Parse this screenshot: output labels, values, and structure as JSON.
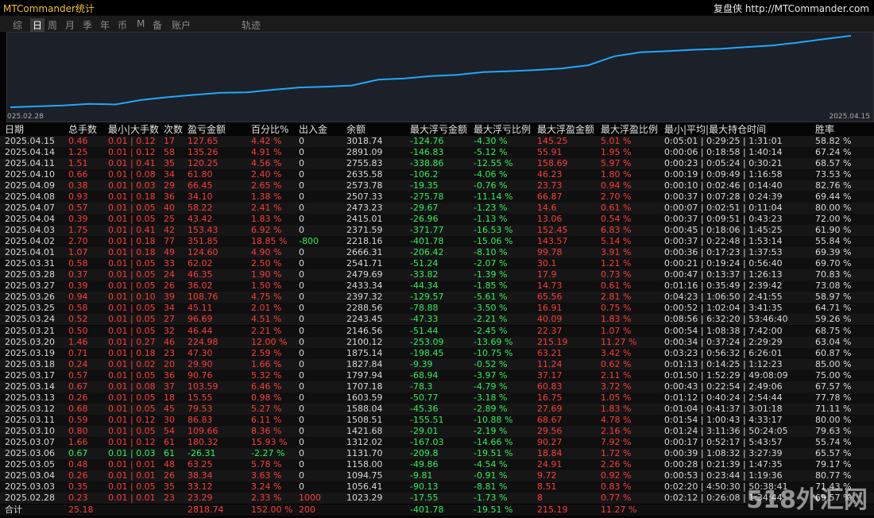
{
  "header": {
    "title": "MTCommander统计",
    "brand": "复盘侠",
    "url": "http://MTCommander.com"
  },
  "tabs": [
    "综",
    "日",
    "周",
    "月",
    "季",
    "年",
    "币",
    "M",
    "备",
    "账户",
    "轨迹"
  ],
  "active_tab": 1,
  "chart": {
    "type": "line",
    "x_start_label": "025.02.28",
    "x_end_label": "2025.04.15",
    "color": "#1fa8ff"
  },
  "table": {
    "columns": [
      "日期",
      "总手数",
      "最小|大手数",
      "次数",
      "盈亏金额",
      "百分比%",
      "出入金",
      "余额",
      "最大浮亏金额",
      "最大浮亏比例",
      "最大浮盈金额",
      "最大浮盈比例",
      "最小|平均|最大持仓时间",
      "胜率"
    ],
    "rows": [
      [
        "2025.04.15",
        "0.46",
        "0.01 | 0.12",
        "17",
        "127.65",
        "4.42 %",
        "0",
        "3018.74",
        "-124.76",
        "-4.30 %",
        "145.25",
        "5.01 %",
        "0:05:01 | 0:29:25 | 1:31:01",
        "58.82 %"
      ],
      [
        "2025.04.14",
        "1.25",
        "0.01 | 0.12",
        "58",
        "135.26",
        "4.91 %",
        "0",
        "2891.09",
        "-146.83",
        "-5.12 %",
        "55.91",
        "1.95 %",
        "0:00:06 | 0:18:58 | 1:40:14",
        "67.24 %"
      ],
      [
        "2025.04.11",
        "1.51",
        "0.01 | 0.41",
        "35",
        "120.25",
        "4.56 %",
        "0",
        "2755.83",
        "-338.86",
        "-12.55 %",
        "158.69",
        "5.97 %",
        "0:00:23 | 0:05:24 | 0:30:21",
        "68.57 %"
      ],
      [
        "2025.04.10",
        "0.66",
        "0.01 | 0.08",
        "34",
        "61.80",
        "2.40 %",
        "0",
        "2635.58",
        "-106.2",
        "-4.06 %",
        "46.23",
        "1.80 %",
        "0:00:19 | 0:09:49 | 1:16:58",
        "73.53 %"
      ],
      [
        "2025.04.09",
        "0.38",
        "0.01 | 0.03",
        "29",
        "66.45",
        "2.65 %",
        "0",
        "2573.78",
        "-19.35",
        "-0.76 %",
        "23.73",
        "0.94 %",
        "0:00:10 | 0:02:46 | 0:14:40",
        "82.76 %"
      ],
      [
        "2025.04.08",
        "0.93",
        "0.01 | 0.18",
        "36",
        "34.10",
        "1.38 %",
        "0",
        "2507.33",
        "-275.78",
        "-11.14 %",
        "66.87",
        "2.70 %",
        "0:00:37 | 0:07:28 | 0:24:39",
        "69.44 %"
      ],
      [
        "2025.04.07",
        "0.57",
        "0.01 | 0.05",
        "40",
        "58.22",
        "2.41 %",
        "0",
        "2473.23",
        "-29.67",
        "-1.23 %",
        "14.6",
        "0.61 %",
        "0:00:07 | 0:02:51 | 0:11:04",
        "80.00 %"
      ],
      [
        "2025.04.04",
        "0.39",
        "0.01 | 0.05",
        "25",
        "43.42",
        "1.83 %",
        "0",
        "2415.01",
        "-26.96",
        "-1.13 %",
        "13.06",
        "0.54 %",
        "0:00:37 | 0:09:51 | 0:43:23",
        "72.00 %"
      ],
      [
        "2025.04.03",
        "1.75",
        "0.01 | 0.41",
        "42",
        "153.43",
        "6.92 %",
        "0",
        "2371.59",
        "-371.77",
        "-16.53 %",
        "152.45",
        "6.83 %",
        "0:00:45 | 0:18:06 | 1:45:25",
        "61.90 %"
      ],
      [
        "2025.04.02",
        "2.70",
        "0.01 | 0.18",
        "77",
        "351.85",
        "18.85 %",
        "-800",
        "2218.16",
        "-401.78",
        "-15.06 %",
        "143.57",
        "5.14 %",
        "0:00:37 | 0:22:48 | 1:53:14",
        "55.84 %"
      ],
      [
        "2025.04.01",
        "1.07",
        "0.01 | 0.18",
        "49",
        "124.60",
        "4.90 %",
        "0",
        "2666.31",
        "-206.42",
        "-8.10 %",
        "99.78",
        "3.91 %",
        "0:00:36 | 0:17:23 | 1:37:53",
        "69.39 %"
      ],
      [
        "2025.03.31",
        "0.58",
        "0.01 | 0.05",
        "33",
        "62.02",
        "2.50 %",
        "0",
        "2541.71",
        "-51.24",
        "-2.07 %",
        "30.1",
        "1.21 %",
        "0:00:21 | 0:19:24 | 0:56:40",
        "69.70 %"
      ],
      [
        "2025.03.28",
        "0.37",
        "0.01 | 0.05",
        "24",
        "46.35",
        "1.90 %",
        "0",
        "2479.69",
        "-33.82",
        "-1.39 %",
        "17.9",
        "0.73 %",
        "0:00:47 | 0:13:37 | 1:26:13",
        "70.83 %"
      ],
      [
        "2025.03.27",
        "0.39",
        "0.01 | 0.05",
        "26",
        "36.02",
        "1.50 %",
        "0",
        "2433.34",
        "-44.34",
        "-1.85 %",
        "14.73",
        "0.61 %",
        "0:01:16 | 0:35:49 | 2:39:42",
        "73.08 %"
      ],
      [
        "2025.03.26",
        "0.94",
        "0.01 | 0.10",
        "39",
        "108.76",
        "4.75 %",
        "0",
        "2397.32",
        "-129.57",
        "-5.61 %",
        "65.56",
        "2.81 %",
        "0:04:23 | 1:06:50 | 2:41:55",
        "58.97 %"
      ],
      [
        "2025.03.25",
        "0.58",
        "0.01 | 0.05",
        "34",
        "45.11",
        "2.01 %",
        "0",
        "2288.56",
        "-78.88",
        "-3.50 %",
        "16.91",
        "0.75 %",
        "0:00:52 | 1:02:04 | 3:41:35",
        "64.71 %"
      ],
      [
        "2025.03.24",
        "0.52",
        "0.01 | 0.05",
        "27",
        "96.69",
        "4.51 %",
        "0",
        "2243.45",
        "-47.33",
        "-2.21 %",
        "40.09",
        "1.83 %",
        "0:08:56 | 6:32:20 | 53:46:40",
        "59.26 %"
      ],
      [
        "2025.03.21",
        "0.50",
        "0.01 | 0.05",
        "32",
        "46.44",
        "2.21 %",
        "0",
        "2146.56",
        "-51.44",
        "-2.45 %",
        "22.37",
        "1.07 %",
        "0:00:54 | 1:08:38 | 7:42:00",
        "68.75 %"
      ],
      [
        "2025.03.20",
        "1.46",
        "0.01 | 0.27",
        "46",
        "224.98",
        "12.00 %",
        "0",
        "2100.12",
        "-253.09",
        "-13.69 %",
        "215.19",
        "11.27 %",
        "0:00:34 | 0:37:24 | 2:29:29",
        "63.04 %"
      ],
      [
        "2025.03.19",
        "0.71",
        "0.01 | 0.18",
        "23",
        "47.30",
        "2.59 %",
        "0",
        "1875.14",
        "-198.45",
        "-10.75 %",
        "63.21",
        "3.42 %",
        "0:03:23 | 0:56:32 | 6:26:01",
        "60.87 %"
      ],
      [
        "2025.03.18",
        "0.24",
        "0.01 | 0.02",
        "20",
        "29.90",
        "1.66 %",
        "0",
        "1827.84",
        "-9.39",
        "-0.52 %",
        "11.24",
        "0.62 %",
        "0:01:13 | 0:14:25 | 1:12:23",
        "85.00 %"
      ],
      [
        "2025.03.17",
        "0.57",
        "0.01 | 0.05",
        "36",
        "90.76",
        "5.32 %",
        "0",
        "1797.94",
        "-68.94",
        "-3.97 %",
        "37.17",
        "2.11 %",
        "0:01:50 | 1:52:29 | 49:08:09",
        "75.00 %"
      ],
      [
        "2025.03.14",
        "0.67",
        "0.01 | 0.08",
        "37",
        "103.59",
        "6.46 %",
        "0",
        "1707.18",
        "-78.3",
        "-4.79 %",
        "60.83",
        "3.72 %",
        "0:00:43 | 0:22:54 | 2:49:06",
        "67.57 %"
      ],
      [
        "2025.03.13",
        "0.26",
        "0.01 | 0.05",
        "18",
        "15.55",
        "0.98 %",
        "0",
        "1603.59",
        "-50.77",
        "-3.18 %",
        "16.75",
        "1.05 %",
        "0:01:12 | 0:40:24 | 2:54:44",
        "77.78 %"
      ],
      [
        "2025.03.12",
        "0.68",
        "0.01 | 0.05",
        "45",
        "79.53",
        "5.27 %",
        "0",
        "1588.04",
        "-45.36",
        "-2.89 %",
        "27.69",
        "1.83 %",
        "0:01:04 | 0:41:37 | 3:01:18",
        "71.11 %"
      ],
      [
        "2025.03.11",
        "0.59",
        "0.01 | 0.12",
        "30",
        "86.83",
        "6.11 %",
        "0",
        "1508.51",
        "-155.51",
        "-10.88 %",
        "68.67",
        "4.78 %",
        "0:01:54 | 1:00:43 | 4:33:17",
        "80.00 %"
      ],
      [
        "2025.03.10",
        "0.80",
        "0.01 | 0.05",
        "54",
        "109.66",
        "8.36 %",
        "0",
        "1421.68",
        "-29.01",
        "-2.19 %",
        "29.56",
        "2.16 %",
        "0:01:24 | 3:11:36 | 50:24:05",
        "79.63 %"
      ],
      [
        "2025.03.07",
        "1.66",
        "0.01 | 0.12",
        "61",
        "180.32",
        "15.93 %",
        "0",
        "1312.02",
        "-167.03",
        "-14.66 %",
        "90.27",
        "7.92 %",
        "0:00:17 | 0:52:17 | 5:43:57",
        "55.74 %"
      ],
      [
        "2025.03.06",
        "0.67",
        "0.01 | 0.03",
        "61",
        "-26.31",
        "-2.27 %",
        "0",
        "1131.70",
        "-209.8",
        "-19.51 %",
        "18.84",
        "1.72 %",
        "0:00:39 | 1:08:32 | 3:27:39",
        "65.57 %"
      ],
      [
        "2025.03.05",
        "0.48",
        "0.01 | 0.01",
        "48",
        "63.25",
        "5.78 %",
        "0",
        "1158.00",
        "-49.86",
        "-4.54 %",
        "24.91",
        "2.26 %",
        "0:00:28 | 0:21:39 | 1:47:35",
        "79.17 %"
      ],
      [
        "2025.03.04",
        "0.26",
        "0.01 | 0.01",
        "26",
        "38.34",
        "3.63 %",
        "0",
        "1094.75",
        "-9.81",
        "-0.91 %",
        "9.72",
        "0.92 %",
        "0:00:53 | 0:23:44 | 1:19:36",
        "80.77 %"
      ],
      [
        "2025.03.03",
        "0.35",
        "0.01 | 0.05",
        "35",
        "33.12",
        "3.24 %",
        "0",
        "1056.41",
        "-90.13",
        "-8.81 %",
        "8.51",
        "0.83 %",
        "0:02:20 | 4:50:30 | 50:38:41",
        "71.43 %"
      ],
      [
        "2025.02.28",
        "0.23",
        "0.01 | 0.01",
        "23",
        "23.29",
        "2.33 %",
        "1000",
        "1023.29",
        "-17.55",
        "-1.73 %",
        "8",
        "0.77 %",
        "0:02:12 | 0:26:08 | 1:34:44",
        "69.57 %"
      ]
    ],
    "total": [
      "合计",
      "25.18",
      null,
      null,
      "2818.74",
      "152.00 %",
      "200",
      null,
      "-401.78",
      "-19.51 %",
      "215.19",
      "11.27 %",
      null,
      null
    ]
  },
  "watermark": "518外汇网"
}
